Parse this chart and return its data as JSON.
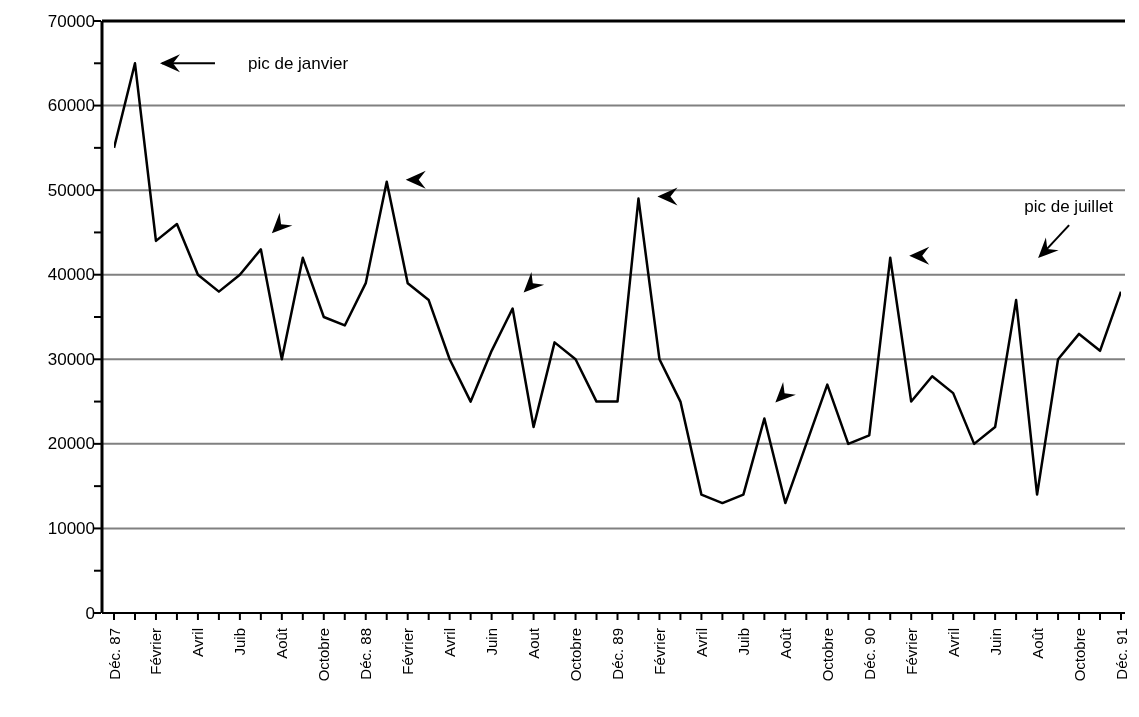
{
  "chart_data": {
    "type": "line",
    "categories": [
      "Déc. 87",
      null,
      "Février",
      null,
      "Avril",
      null,
      "Juib",
      null,
      "Août",
      null,
      "Octobre",
      null,
      "Déc. 88",
      null,
      "Février",
      null,
      "Avril",
      null,
      "Juin",
      null,
      "Aout",
      null,
      "Octobre",
      null,
      "Déc. 89",
      null,
      "Février",
      null,
      "Avril",
      null,
      "Juib",
      null,
      "Août",
      null,
      "Octobre",
      null,
      "Déc. 90",
      null,
      "Février",
      null,
      "Avril",
      null,
      "Juin",
      null,
      "Août",
      null,
      "Octobre",
      null,
      "Déc. 91"
    ],
    "series": [
      {
        "color": "#000000",
        "values": [
          55000,
          65000,
          44000,
          46000,
          40000,
          38000,
          40000,
          43000,
          30000,
          42000,
          35000,
          34000,
          39000,
          51000,
          39000,
          37000,
          30000,
          25000,
          31000,
          36000,
          22000,
          32000,
          30000,
          25000,
          25000,
          49000,
          30000,
          25000,
          14000,
          13000,
          14000,
          23000,
          13000,
          20000,
          27000,
          20000,
          21000,
          42000,
          25000,
          28000,
          26000,
          20000,
          22000,
          37000,
          14000,
          30000,
          33000,
          31000,
          38000
        ]
      }
    ],
    "ylim": [
      0,
      70000
    ],
    "yticks": [
      0,
      {
        "value": 5000,
        "label": null
      },
      10000,
      {
        "value": 15000,
        "label": null
      },
      20000,
      {
        "value": 25000,
        "label": null
      },
      30000,
      {
        "value": 35000,
        "label": null
      },
      40000,
      {
        "value": 45000,
        "label": null
      },
      50000,
      {
        "value": 55000,
        "label": null
      },
      60000,
      {
        "value": 65000,
        "label": null
      },
      70000
    ],
    "grid": "y",
    "marker": "none",
    "line_style": "solid",
    "annotations": [
      "pic de janvier",
      "pic de juillet"
    ]
  }
}
